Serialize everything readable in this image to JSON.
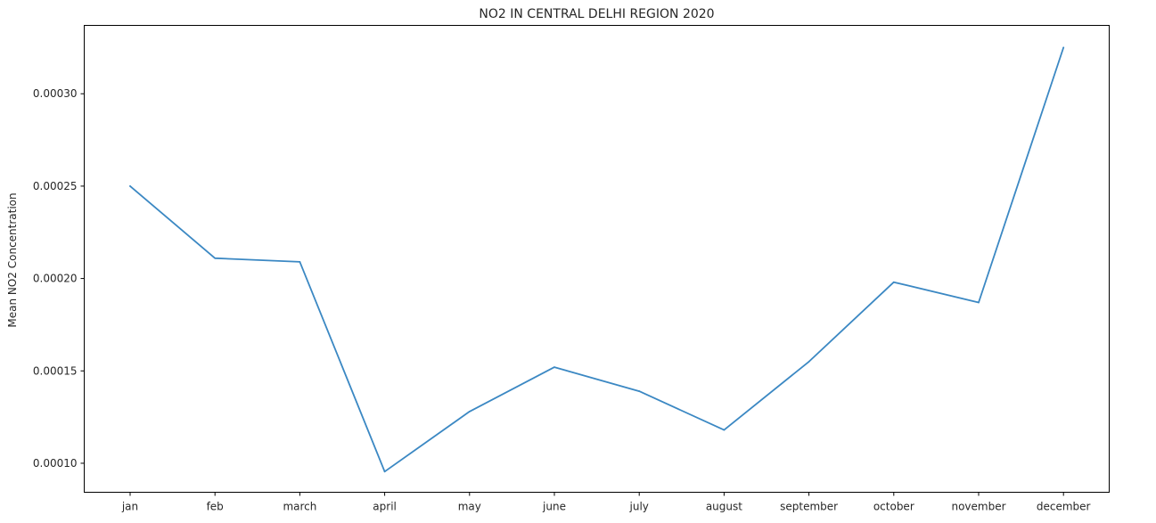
{
  "chart_data": {
    "type": "line",
    "title": "NO2 IN CENTRAL DELHI REGION 2020",
    "xlabel": "",
    "ylabel": "Mean NO2 Concentration",
    "categories": [
      "jan",
      "feb",
      "march",
      "april",
      "may",
      "june",
      "july",
      "august",
      "september",
      "october",
      "november",
      "december"
    ],
    "series": [
      {
        "values": [
          0.00025,
          0.000211,
          0.000209,
          9.55e-05,
          0.000128,
          0.000152,
          0.000139,
          0.000118,
          0.000155,
          0.000198,
          0.000187,
          0.000325
        ],
        "color": "#3b88c3"
      }
    ],
    "yticks": [
      {
        "value": 0.0001,
        "label": "0.00010"
      },
      {
        "value": 0.00015,
        "label": "0.00015"
      },
      {
        "value": 0.0002,
        "label": "0.00020"
      },
      {
        "value": 0.00025,
        "label": "0.00025"
      },
      {
        "value": 0.0003,
        "label": "0.00030"
      }
    ],
    "ylim": [
      8.43e-05,
      0.000337
    ],
    "grid": false,
    "legend": "none"
  }
}
